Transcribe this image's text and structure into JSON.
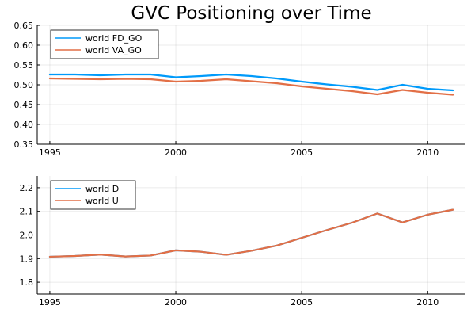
{
  "chart_data": [
    {
      "type": "line",
      "title": "GVC Positioning over Time",
      "xlabel": "",
      "ylabel": "",
      "xlim": [
        1994.5,
        2011.5
      ],
      "ylim": [
        0.35,
        0.65
      ],
      "xticks": [
        1995,
        2000,
        2005,
        2010
      ],
      "yticks": [
        0.35,
        0.4,
        0.45,
        0.5,
        0.55,
        0.6,
        0.65
      ],
      "ytick_labels": [
        "0.35",
        "0.40",
        "0.45",
        "0.50",
        "0.55",
        "0.60",
        "0.65"
      ],
      "grid": true,
      "legend_position": "top-left",
      "x": [
        1995,
        1996,
        1997,
        1998,
        1999,
        2000,
        2001,
        2002,
        2003,
        2004,
        2005,
        2006,
        2007,
        2008,
        2009,
        2010,
        2011
      ],
      "series": [
        {
          "name": "world FD_GO",
          "color": "#009AFA",
          "values": [
            0.526,
            0.526,
            0.524,
            0.526,
            0.526,
            0.519,
            0.522,
            0.526,
            0.522,
            0.516,
            0.508,
            0.501,
            0.495,
            0.487,
            0.5,
            0.49,
            0.486
          ]
        },
        {
          "name": "world VA_GO",
          "color": "#E26F46",
          "values": [
            0.516,
            0.515,
            0.514,
            0.515,
            0.514,
            0.508,
            0.51,
            0.514,
            0.509,
            0.504,
            0.496,
            0.49,
            0.484,
            0.476,
            0.487,
            0.48,
            0.475
          ]
        }
      ]
    },
    {
      "type": "line",
      "title": "",
      "xlabel": "",
      "ylabel": "",
      "xlim": [
        1994.5,
        2011.5
      ],
      "ylim": [
        1.75,
        2.25
      ],
      "xticks": [
        1995,
        2000,
        2005,
        2010
      ],
      "yticks": [
        1.8,
        1.9,
        2.0,
        2.1,
        2.2
      ],
      "ytick_labels": [
        "1.8",
        "1.9",
        "2.0",
        "2.1",
        "2.2"
      ],
      "grid": true,
      "legend_position": "top-left",
      "x": [
        1995,
        1996,
        1997,
        1998,
        1999,
        2000,
        2001,
        2002,
        2003,
        2004,
        2005,
        2006,
        2007,
        2008,
        2009,
        2010,
        2011
      ],
      "series": [
        {
          "name": "world D",
          "color": "#009AFA",
          "values": [
            1.908,
            1.911,
            1.917,
            1.909,
            1.913,
            1.935,
            1.929,
            1.916,
            1.933,
            1.955,
            1.988,
            2.021,
            2.052,
            2.091,
            2.053,
            2.086,
            2.107
          ]
        },
        {
          "name": "world U",
          "color": "#E26F46",
          "values": [
            1.908,
            1.911,
            1.917,
            1.909,
            1.913,
            1.935,
            1.929,
            1.916,
            1.933,
            1.955,
            1.988,
            2.021,
            2.052,
            2.091,
            2.053,
            2.086,
            2.107
          ]
        }
      ]
    }
  ]
}
